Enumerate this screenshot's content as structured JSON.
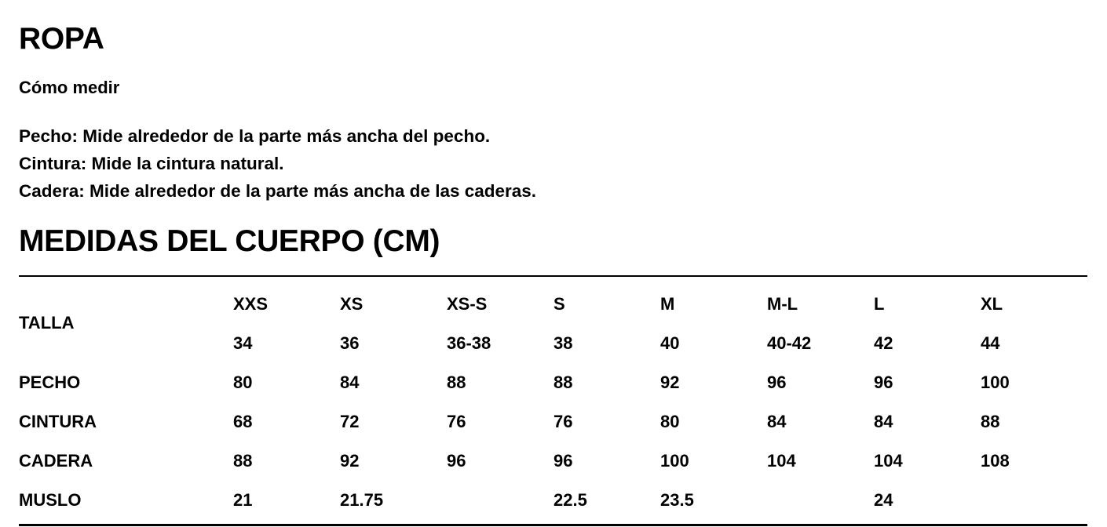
{
  "title": "ROPA",
  "how_to_measure": {
    "heading": "Cómo medir",
    "lines": [
      "Pecho: Mide alrededor de la parte más ancha del pecho.",
      "Cintura: Mide la cintura natural.",
      "Cadera: Mide alrededor de la parte más ancha de las caderas."
    ]
  },
  "table_title": "MEDIDAS DEL CUERPO (CM)",
  "table": {
    "size_label": "TALLA",
    "sizes": [
      "XXS",
      "XS",
      "XS-S",
      "S",
      "M",
      "M-L",
      "L",
      "XL"
    ],
    "size_numbers": [
      "34",
      "36",
      "36-38",
      "38",
      "40",
      "40-42",
      "42",
      "44"
    ],
    "rows": [
      {
        "label": "PECHO",
        "values": [
          "80",
          "84",
          "88",
          "88",
          "92",
          "96",
          "96",
          "100"
        ]
      },
      {
        "label": "CINTURA",
        "values": [
          "68",
          "72",
          "76",
          "76",
          "80",
          "84",
          "84",
          "88"
        ]
      },
      {
        "label": "CADERA",
        "values": [
          "88",
          "92",
          "96",
          "96",
          "100",
          "104",
          "104",
          "108"
        ]
      },
      {
        "label": "MUSLO",
        "values": [
          "21",
          "21.75",
          "",
          "22.5",
          "23.5",
          "",
          "24",
          ""
        ]
      }
    ]
  }
}
